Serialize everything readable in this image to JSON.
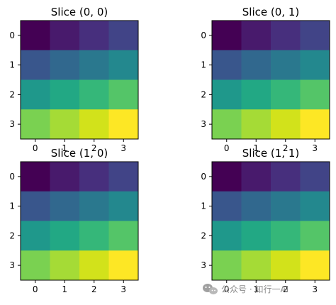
{
  "chart_data": [
    {
      "type": "heatmap",
      "title": "Slice (0, 0)",
      "x_ticks": [
        "0",
        "1",
        "2",
        "3"
      ],
      "y_ticks": [
        "0",
        "1",
        "2",
        "3"
      ],
      "colormap": "viridis",
      "values": [
        [
          0,
          1,
          2,
          3
        ],
        [
          4,
          5,
          6,
          7
        ],
        [
          8,
          9,
          10,
          11
        ],
        [
          12,
          13,
          14,
          15
        ]
      ],
      "vmin": 0,
      "vmax": 15
    },
    {
      "type": "heatmap",
      "title": "Slice (0, 1)",
      "x_ticks": [
        "0",
        "1",
        "2",
        "3"
      ],
      "y_ticks": [
        "0",
        "1",
        "2",
        "3"
      ],
      "colormap": "viridis",
      "values": [
        [
          0,
          1,
          2,
          3
        ],
        [
          4,
          5,
          6,
          7
        ],
        [
          8,
          9,
          10,
          11
        ],
        [
          12,
          13,
          14,
          15
        ]
      ],
      "vmin": 0,
      "vmax": 15
    },
    {
      "type": "heatmap",
      "title": "Slice (1, 0)",
      "x_ticks": [
        "0",
        "1",
        "2",
        "3"
      ],
      "y_ticks": [
        "0",
        "1",
        "2",
        "3"
      ],
      "colormap": "viridis",
      "values": [
        [
          0,
          1,
          2,
          3
        ],
        [
          4,
          5,
          6,
          7
        ],
        [
          8,
          9,
          10,
          11
        ],
        [
          12,
          13,
          14,
          15
        ]
      ],
      "vmin": 0,
      "vmax": 15
    },
    {
      "type": "heatmap",
      "title": "Slice (1, 1)",
      "x_ticks": [
        "0",
        "1",
        "2",
        "3"
      ],
      "y_ticks": [
        "0",
        "1",
        "2",
        "3"
      ],
      "colormap": "viridis",
      "values": [
        [
          0,
          1,
          2,
          3
        ],
        [
          4,
          5,
          6,
          7
        ],
        [
          8,
          9,
          10,
          11
        ],
        [
          12,
          13,
          14,
          15
        ]
      ],
      "vmin": 0,
      "vmax": 15
    }
  ],
  "colors": {
    "viridis": [
      "#440154",
      "#481a6c",
      "#472f7d",
      "#414487",
      "#39568c",
      "#31688e",
      "#2a788e",
      "#23888e",
      "#1f988b",
      "#22a884",
      "#35b779",
      "#54c568",
      "#7ad151",
      "#a5db36",
      "#d2e21b",
      "#fde725"
    ]
  },
  "watermark": {
    "text": "公众号 · 知行一AI",
    "icon": "wechat-icon"
  }
}
